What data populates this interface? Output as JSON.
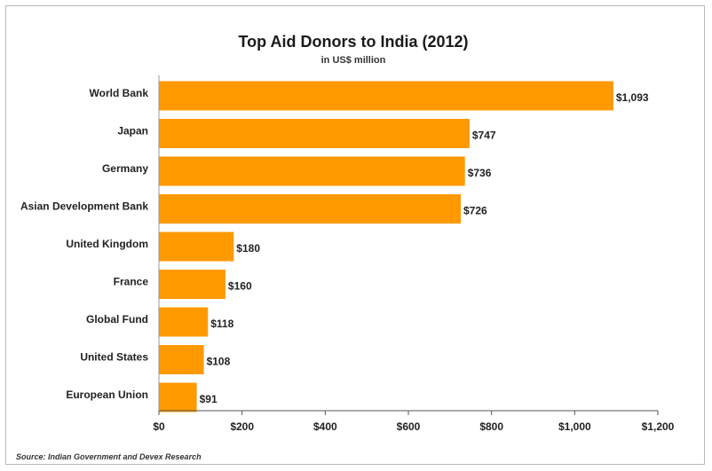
{
  "chart_data": {
    "type": "bar",
    "orientation": "horizontal",
    "title": "Top Aid Donors to India (2012)",
    "subtitle": "in US$ million",
    "categories": [
      "World Bank",
      "Japan",
      "Germany",
      "Asian Development Bank",
      "United Kingdom",
      "France",
      "Global Fund",
      "United States",
      "European Union"
    ],
    "values": [
      1093,
      747,
      736,
      726,
      180,
      160,
      118,
      108,
      91
    ],
    "data_labels": [
      "$1,093",
      "$747",
      "$736",
      "$726",
      "$180",
      "$160",
      "$118",
      "$108",
      "$91"
    ],
    "xlim": [
      0,
      1200
    ],
    "x_ticks": [
      0,
      200,
      400,
      600,
      800,
      1000,
      1200
    ],
    "x_tick_labels": [
      "$0",
      "$200",
      "$400",
      "$600",
      "$800",
      "$1,000",
      "$1,200"
    ],
    "xlabel": "",
    "ylabel": "",
    "grid": false,
    "legend": "none",
    "bar_color": "#FF9900",
    "source": "Source: Indian Government and Devex Research"
  }
}
